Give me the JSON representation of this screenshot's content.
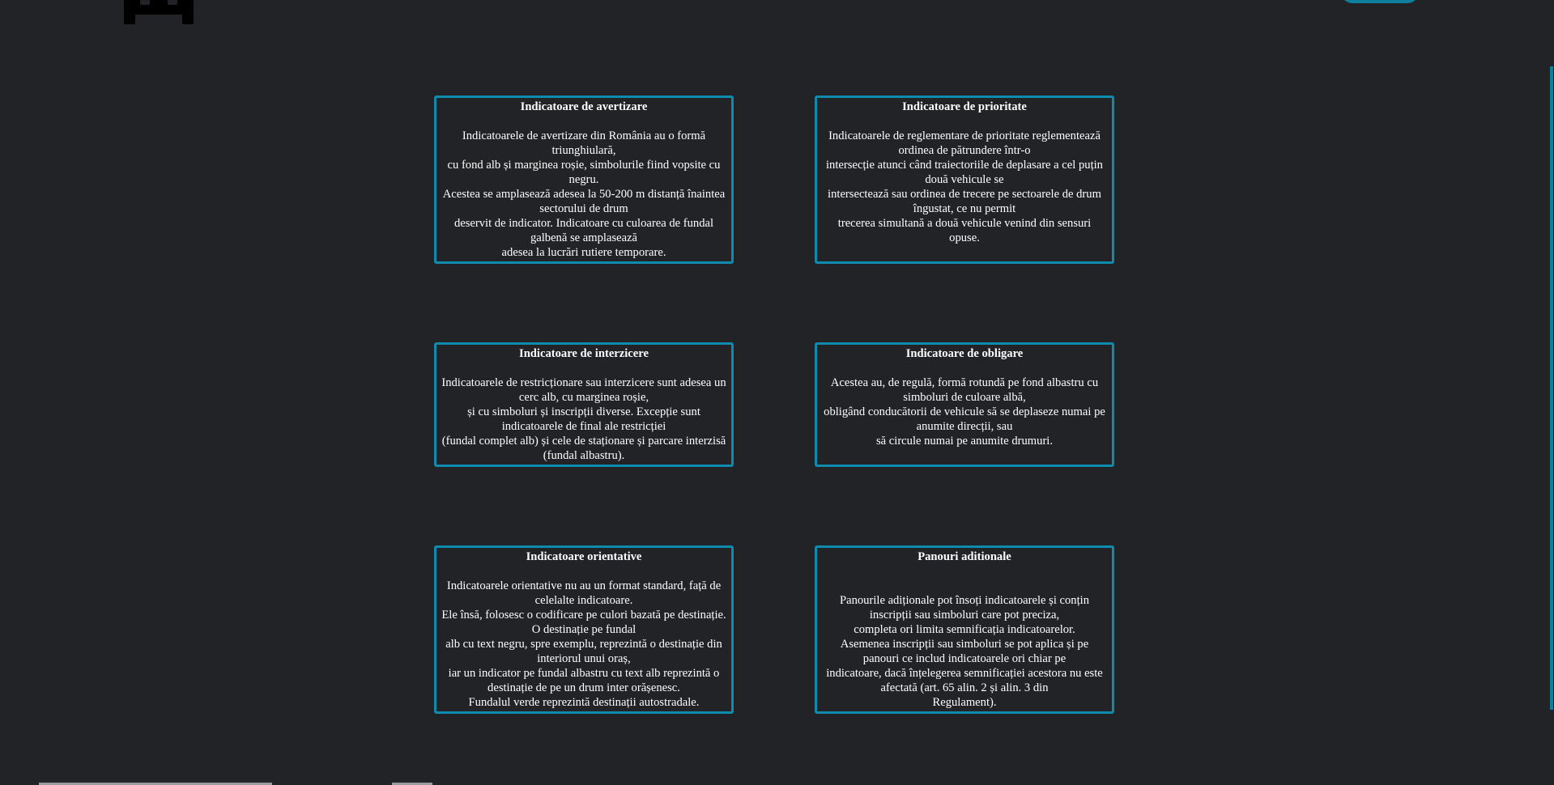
{
  "colors": {
    "background": "#222327",
    "accent": "#0f8bae",
    "text": "#ffffff"
  },
  "header": {
    "logo_icon": "car-icon"
  },
  "cards": [
    {
      "title": "Indicatoare de avertizare",
      "lines": [
        "Indicatoarele de avertizare din România au o formă triunghiulară,",
        "cu fond alb și marginea roșie, simbolurile fiind vopsite cu negru.",
        "Acestea se amplasează adesea la 50-200 m distanță înaintea sectorului de drum",
        "deservit de indicator. Indicatoare cu culoarea de fundal galbenă se amplasează",
        "adesea la lucrări rutiere temporare."
      ]
    },
    {
      "title": "Indicatoare de prioritate",
      "lines": [
        "Indicatoarele de reglementare de prioritate reglementează ordinea de pătrundere într-o",
        "intersecție atunci când traiectoriile de deplasare a cel puțin două vehicule se",
        "intersectează sau ordinea de trecere pe sectoarele de drum îngustat, ce nu permit",
        "trecerea simultană a două vehicule venind din sensuri opuse."
      ]
    },
    {
      "title": "Indicatoare de interzicere",
      "lines": [
        "Indicatoarele de restricționare sau interzicere sunt adesea un cerc alb, cu marginea roșie,",
        "și cu simboluri și inscripții diverse. Excepție sunt indicatoarele de final ale restricției",
        "(fundal complet alb) și cele de staționare și parcare interzisă (fundal albastru)."
      ]
    },
    {
      "title": "Indicatoare de obligare",
      "lines": [
        "Acestea au, de regulă, formă rotundă pe fond albastru cu simboluri de culoare albă,",
        "obligând conducătorii de vehicule să se deplaseze numai pe anumite direcții, sau",
        "să circule numai pe anumite drumuri."
      ]
    },
    {
      "title": "Indicatoare orientative",
      "lines": [
        "Indicatoarele orientative nu au un format standard, față de celelalte indicatoare.",
        "Ele însă, folosesc o codificare pe culori bazată pe destinație. O destinație pe fundal",
        "alb cu text negru, spre exemplu, reprezintă o destinație din interiorul unui oraș,",
        "iar un indicator pe fundal albastru cu text alb reprezintă o destinație de pe un drum inter orășenesc.",
        "Fundalul verde reprezintă destinații autostradale."
      ]
    },
    {
      "title": "Panouri aditionale",
      "lines": [
        "Panourile adiționale pot însoți indicatoarele și conțin inscripții sau simboluri care pot preciza,",
        "completa ori limita semnificația indicatoarelor.",
        "Asemenea inscripții sau simboluri se pot aplica și pe panouri ce includ indicatoarele ori chiar pe",
        "indicatoare, dacă înțelegerea semnificației acestora nu este afectată (art. 65 alin. 2 și alin. 3 din",
        "Regulament)."
      ]
    }
  ]
}
